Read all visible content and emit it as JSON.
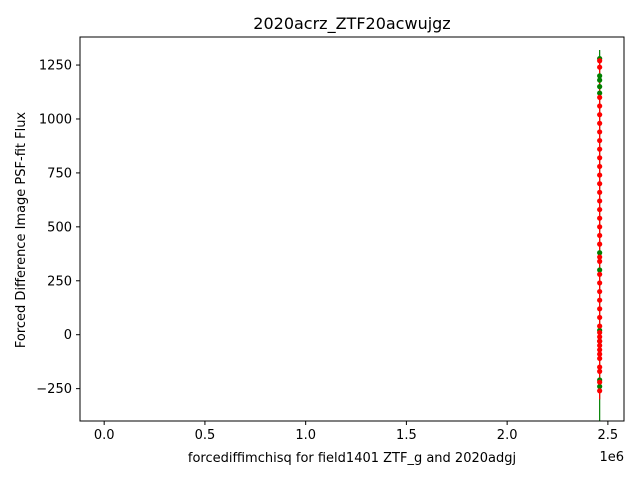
{
  "chart_data": {
    "type": "scatter",
    "title": "2020acrz_ZTF20acwujgz",
    "xlabel": "forcediffimchisq for field1401 ZTF_g and 2020adgj",
    "ylabel": "Forced Difference Image PSF-fit Flux",
    "x_offset_label": "1e6",
    "xlim": [
      -120000,
      2580000
    ],
    "ylim": [
      -400,
      1380
    ],
    "x_ticks": [
      0,
      500000,
      1000000,
      1500000,
      2000000,
      2500000
    ],
    "x_tick_labels": [
      "0.0",
      "0.5",
      "1.0",
      "1.5",
      "2.0",
      "2.5"
    ],
    "y_ticks": [
      -250,
      0,
      250,
      500,
      750,
      1000,
      1250
    ],
    "y_tick_labels": [
      "−250",
      "0",
      "250",
      "500",
      "750",
      "1000",
      "1250"
    ],
    "grid": false,
    "colors": {
      "series_a": "#008000",
      "series_b": "#ff0000"
    },
    "series": [
      {
        "color": "#008000",
        "x": [
          2459170,
          2459170,
          2459170,
          2459170,
          2459170,
          2459170,
          2459170,
          2459170,
          2459170,
          2459170,
          2459170
        ],
        "y": [
          1280,
          1200,
          1180,
          1150,
          1120,
          380,
          300,
          20,
          -30,
          -210,
          -240
        ],
        "yerr_low": [
          -400
        ],
        "yerr_high": [
          1320
        ]
      },
      {
        "color": "#ff0000",
        "x": [
          2459172,
          2459172,
          2459172,
          2459172,
          2459172,
          2459172,
          2459172,
          2459172,
          2459172,
          2459172,
          2459172,
          2459172,
          2459172,
          2459172,
          2459172,
          2459172,
          2459172,
          2459172,
          2459172,
          2459172,
          2459172,
          2459172,
          2459172,
          2459172,
          2459172,
          2459172,
          2459172,
          2459172,
          2459172,
          2459172,
          2459172,
          2459172,
          2459172,
          2459172,
          2459172,
          2459172,
          2459172,
          2459172,
          2459172,
          2459172
        ],
        "y": [
          1270,
          1240,
          1100,
          1060,
          1020,
          980,
          940,
          900,
          860,
          820,
          780,
          740,
          700,
          660,
          620,
          580,
          540,
          500,
          460,
          420,
          360,
          340,
          280,
          240,
          200,
          160,
          120,
          80,
          40,
          10,
          -10,
          -30,
          -50,
          -70,
          -90,
          -110,
          -150,
          -170,
          -220,
          -260
        ],
        "yerr_low": [
          -300
        ],
        "yerr_high": [
          1290
        ]
      }
    ]
  }
}
